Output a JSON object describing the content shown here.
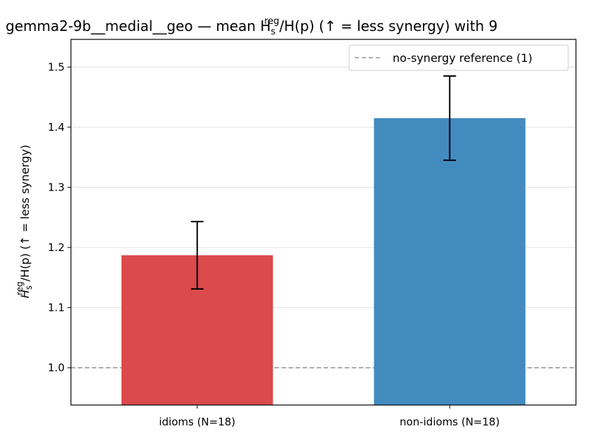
{
  "chart_data": {
    "type": "bar",
    "title": "gemma2-9b__medial__geo — mean H",
    "title_sup": "reg",
    "title_sub": "s",
    "title_mid": "/H(p)",
    "title_tail": "  (↑ = less synergy) with 9",
    "ylabel_base": "H",
    "ylabel_sup": "reg",
    "ylabel_sub": "s",
    "ylabel_tail": "/H(p)  (↑ = less synergy)",
    "categories": [
      "idioms (N=18)",
      "non-idioms (N=18)"
    ],
    "values": [
      1.187,
      1.415
    ],
    "error_low": [
      1.131,
      1.345
    ],
    "error_high": [
      1.243,
      1.485
    ],
    "bar_colors": [
      "#db4a4c",
      "#438bbf"
    ],
    "ylim": [
      0.938,
      1.546
    ],
    "yticks": [
      1.0,
      1.1,
      1.2,
      1.3,
      1.4,
      1.5
    ],
    "ytick_labels": [
      "1.0",
      "1.1",
      "1.2",
      "1.3",
      "1.4",
      "1.5"
    ],
    "reference_line": 1.0,
    "grid": "y",
    "legend": {
      "placement": "top-right",
      "label": "no-synergy reference (1)"
    }
  }
}
